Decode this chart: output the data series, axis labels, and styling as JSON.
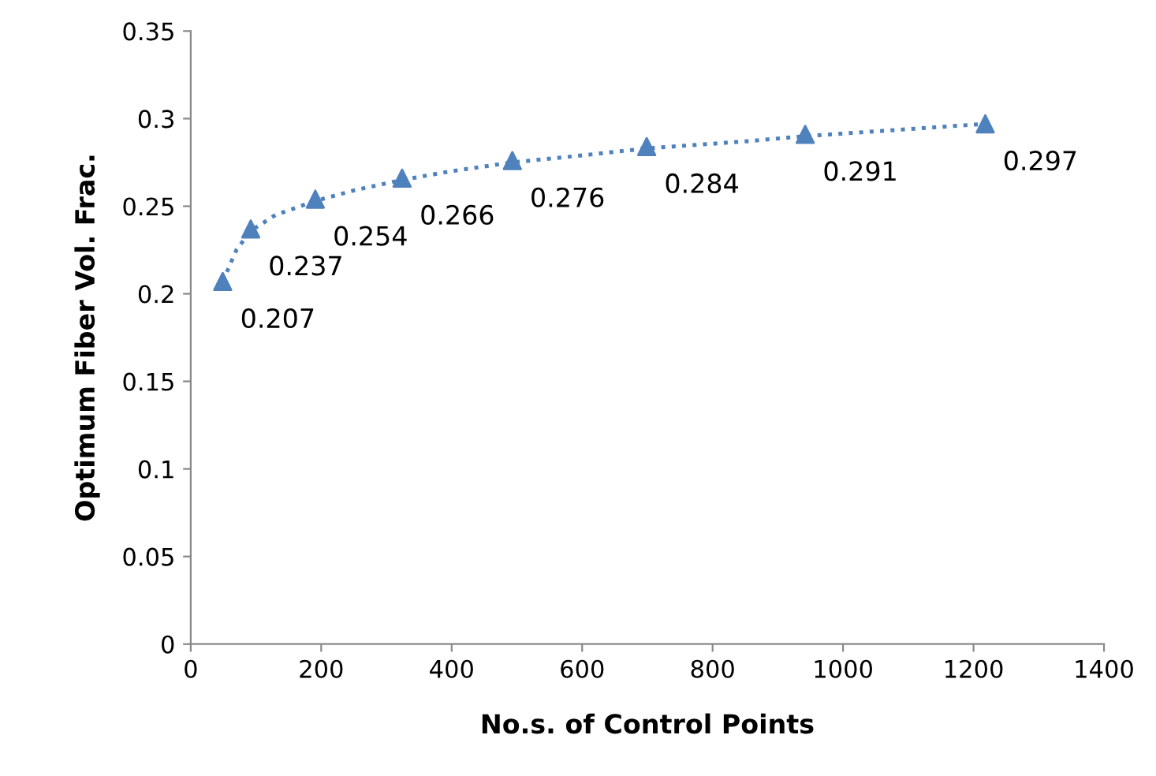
{
  "chart_data": {
    "type": "scatter",
    "xlabel": "No.s. of Control Points",
    "ylabel": "Optimum Fiber Vol. Frac.",
    "xlim": [
      0,
      1400
    ],
    "xticks": [
      0,
      200,
      400,
      600,
      800,
      1000,
      1200,
      1400
    ],
    "ylim": [
      0,
      0.35
    ],
    "yticks": [
      0,
      0.05,
      0.1,
      0.15,
      0.2,
      0.25,
      0.3,
      0.35
    ],
    "grid": false,
    "legend": false,
    "series": [
      {
        "type": "line",
        "color": "#4f81bd",
        "line_style": "dotted",
        "marker": "none",
        "x": [
          49,
          70,
          92,
          130,
          191,
          250,
          324,
          400,
          493,
          600,
          699,
          850,
          942,
          1100,
          1218
        ],
        "values": [
          0.207,
          0.225,
          0.236,
          0.245,
          0.253,
          0.259,
          0.265,
          0.27,
          0.275,
          0.279,
          0.283,
          0.287,
          0.29,
          0.294,
          0.297
        ]
      },
      {
        "color": "#4f81bd",
        "marker": "triangle",
        "x": [
          49,
          92,
          191,
          324,
          493,
          699,
          942,
          1218
        ],
        "values": [
          0.207,
          0.237,
          0.254,
          0.266,
          0.276,
          0.284,
          0.291,
          0.297
        ],
        "value_labels": [
          "0.207",
          "0.237",
          "0.254",
          "0.266",
          "0.276",
          "0.284",
          "0.291",
          "0.297"
        ]
      }
    ]
  }
}
